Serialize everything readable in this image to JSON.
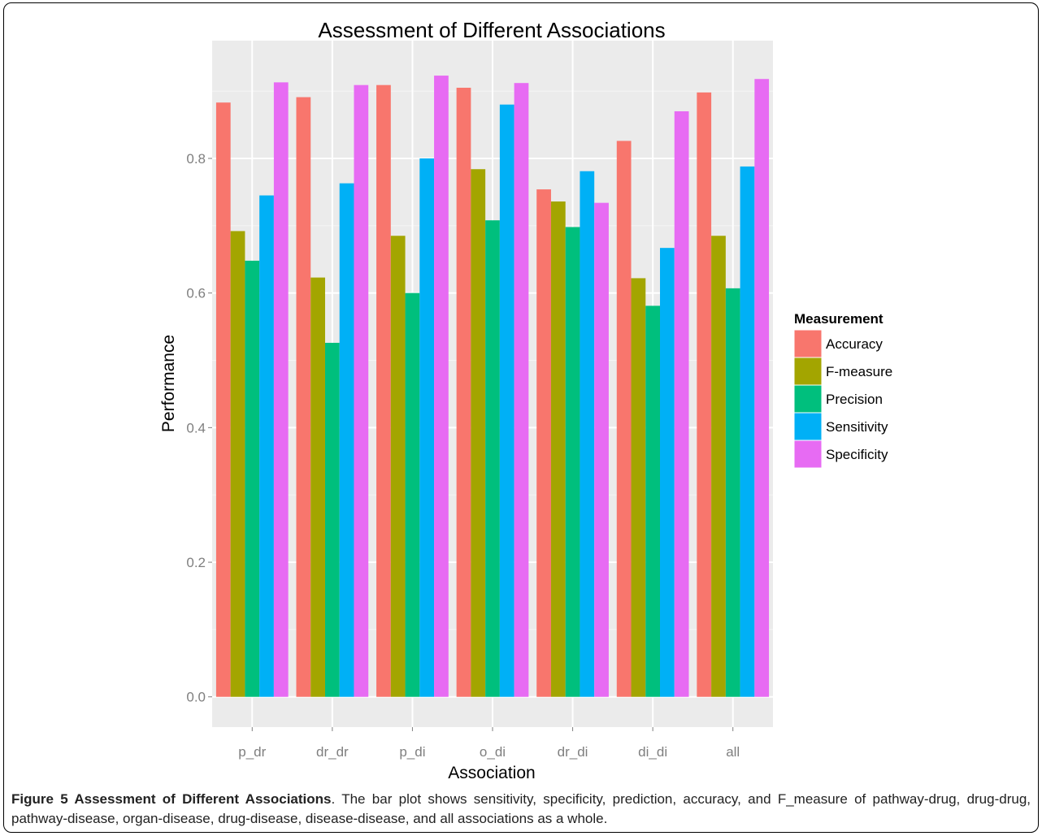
{
  "chart_data": {
    "type": "bar",
    "title": "Assessment of Different Associations",
    "xlabel": "Association",
    "ylabel": "Performance",
    "categories": [
      "p_dr",
      "dr_dr",
      "p_di",
      "o_di",
      "dr_di",
      "di_di",
      "all"
    ],
    "ylim": [
      -0.045,
      0.975
    ],
    "yticks": [
      "0.0",
      "0.2",
      "0.4",
      "0.6",
      "0.8"
    ],
    "grid": true,
    "legend_title": "Measurement",
    "legend_position": "right",
    "series": [
      {
        "name": "Accuracy",
        "color": "#F8766D",
        "values": [
          0.883,
          0.891,
          0.909,
          0.905,
          0.754,
          0.826,
          0.898
        ]
      },
      {
        "name": "F-measure",
        "color": "#A3A500",
        "values": [
          0.692,
          0.623,
          0.685,
          0.784,
          0.736,
          0.622,
          0.685
        ]
      },
      {
        "name": "Precision",
        "color": "#00BF7D",
        "values": [
          0.648,
          0.526,
          0.6,
          0.708,
          0.698,
          0.581,
          0.607
        ]
      },
      {
        "name": "Sensitivity",
        "color": "#00B0F6",
        "values": [
          0.745,
          0.763,
          0.8,
          0.88,
          0.781,
          0.667,
          0.788
        ]
      },
      {
        "name": "Specificity",
        "color": "#E76BF3",
        "values": [
          0.913,
          0.909,
          0.923,
          0.912,
          0.734,
          0.87,
          0.918
        ]
      }
    ]
  },
  "caption": {
    "label": "Figure 5 Assessment of Different Associations",
    "text": ". The bar plot shows sensitivity, specificity, prediction, accuracy, and F_measure of pathway-drug, drug-drug, pathway-disease, organ-disease, drug-disease, disease-disease, and all associations as a whole."
  }
}
